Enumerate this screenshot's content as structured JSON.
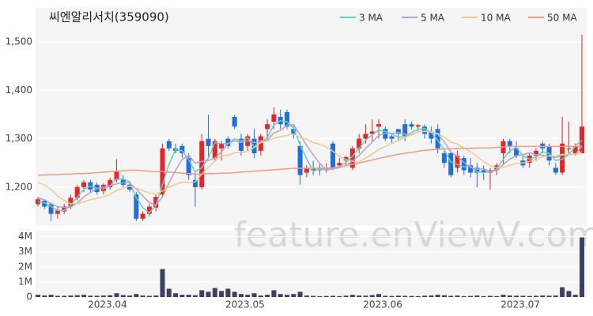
{
  "chart_data": [
    {
      "type": "candlestick",
      "title": "씨엔알리서치(359090)",
      "watermark": "feature.enViewV.com",
      "up_color": "#e4262b",
      "down_color": "#1f6fd6",
      "ylim": [
        1120,
        1570
      ],
      "yticks": [
        {
          "value": 1200,
          "label": "1,200"
        },
        {
          "value": 1300,
          "label": "1,300"
        },
        {
          "value": 1400,
          "label": "1,400"
        },
        {
          "value": 1500,
          "label": "1,500"
        }
      ],
      "grid": true,
      "legend": "top-right",
      "open": [
        1165,
        1172,
        1165,
        1145,
        1150,
        1160,
        1178,
        1200,
        1210,
        1205,
        1192,
        1200,
        1215,
        1215,
        1205,
        1185,
        1135,
        1145,
        1158,
        1185,
        1295,
        1280,
        1285,
        1260,
        1215,
        1200,
        1300,
        1260,
        1280,
        1300,
        1345,
        1300,
        1285,
        1300,
        1275,
        1320,
        1335,
        1345,
        1355,
        1320,
        1285,
        1230,
        1240,
        1240,
        1235,
        1290,
        1245,
        1255,
        1240,
        1280,
        1300,
        1310,
        1325,
        1320,
        1305,
        1320,
        1330,
        1330,
        1325,
        1325,
        1315,
        1320,
        1270,
        1270,
        1240,
        1260,
        1245,
        1240,
        1235,
        1230,
        1235,
        1270,
        1295,
        1280,
        1255,
        1250,
        1265,
        1290,
        1285,
        1240,
        1230,
        1280,
        1270,
        1270
      ],
      "high": [
        1180,
        1175,
        1168,
        1160,
        1165,
        1185,
        1205,
        1215,
        1215,
        1210,
        1208,
        1220,
        1258,
        1225,
        1210,
        1190,
        1150,
        1165,
        1185,
        1290,
        1300,
        1290,
        1290,
        1270,
        1230,
        1310,
        1350,
        1300,
        1295,
        1305,
        1350,
        1310,
        1310,
        1320,
        1310,
        1340,
        1365,
        1360,
        1360,
        1330,
        1295,
        1245,
        1255,
        1250,
        1250,
        1295,
        1260,
        1265,
        1285,
        1310,
        1330,
        1340,
        1340,
        1325,
        1310,
        1320,
        1340,
        1335,
        1330,
        1330,
        1325,
        1330,
        1280,
        1275,
        1275,
        1265,
        1260,
        1250,
        1245,
        1240,
        1250,
        1300,
        1300,
        1295,
        1265,
        1270,
        1280,
        1295,
        1290,
        1250,
        1345,
        1335,
        1290,
        1515
      ],
      "low": [
        1160,
        1155,
        1130,
        1135,
        1145,
        1155,
        1172,
        1190,
        1190,
        1185,
        1185,
        1195,
        1210,
        1200,
        1190,
        1130,
        1130,
        1140,
        1150,
        1180,
        1275,
        1270,
        1260,
        1215,
        1160,
        1195,
        1260,
        1255,
        1255,
        1280,
        1320,
        1265,
        1275,
        1260,
        1265,
        1300,
        1320,
        1320,
        1320,
        1300,
        1205,
        1220,
        1225,
        1225,
        1230,
        1235,
        1240,
        1245,
        1235,
        1270,
        1290,
        1295,
        1300,
        1295,
        1290,
        1295,
        1295,
        1320,
        1315,
        1300,
        1290,
        1270,
        1240,
        1220,
        1230,
        1225,
        1220,
        1200,
        1215,
        1195,
        1225,
        1245,
        1270,
        1260,
        1240,
        1240,
        1255,
        1270,
        1245,
        1225,
        1225,
        1270,
        1265,
        1270
      ],
      "close": [
        1175,
        1160,
        1145,
        1152,
        1160,
        1178,
        1200,
        1210,
        1195,
        1190,
        1205,
        1215,
        1232,
        1205,
        1195,
        1135,
        1145,
        1160,
        1180,
        1280,
        1280,
        1275,
        1270,
        1225,
        1200,
        1295,
        1285,
        1295,
        1290,
        1285,
        1325,
        1275,
        1305,
        1270,
        1305,
        1330,
        1350,
        1330,
        1325,
        1310,
        1225,
        1240,
        1235,
        1235,
        1240,
        1240,
        1250,
        1262,
        1280,
        1300,
        1310,
        1315,
        1330,
        1300,
        1300,
        1310,
        1305,
        1325,
        1328,
        1310,
        1300,
        1280,
        1250,
        1225,
        1265,
        1235,
        1230,
        1230,
        1230,
        1235,
        1245,
        1295,
        1285,
        1265,
        1245,
        1265,
        1275,
        1280,
        1255,
        1230,
        1290,
        1280,
        1285,
        1325
      ],
      "series": [
        {
          "name": "3 MA",
          "color": "#62cfc7",
          "values": [
            1170,
            1168,
            1160,
            1152,
            1152,
            1163,
            1179,
            1196,
            1202,
            1198,
            1197,
            1203,
            1217,
            1217,
            1211,
            1178,
            1158,
            1147,
            1162,
            1205,
            1247,
            1278,
            1275,
            1257,
            1232,
            1240,
            1260,
            1292,
            1290,
            1290,
            1300,
            1295,
            1302,
            1283,
            1293,
            1302,
            1328,
            1337,
            1335,
            1322,
            1287,
            1258,
            1233,
            1237,
            1237,
            1238,
            1243,
            1251,
            1264,
            1281,
            1297,
            1308,
            1318,
            1315,
            1310,
            1303,
            1305,
            1313,
            1319,
            1321,
            1313,
            1297,
            1277,
            1252,
            1247,
            1242,
            1243,
            1232,
            1230,
            1232,
            1237,
            1258,
            1275,
            1282,
            1265,
            1258,
            1262,
            1273,
            1270,
            1255,
            1258,
            1267,
            1285,
            1297
          ]
        },
        {
          "name": "5 MA",
          "color": "#b7a0cc",
          "values": [
            1178,
            1174,
            1166,
            1160,
            1158,
            1159,
            1167,
            1180,
            1189,
            1197,
            1200,
            1203,
            1207,
            1209,
            1209,
            1196,
            1182,
            1168,
            1163,
            1180,
            1209,
            1235,
            1257,
            1266,
            1250,
            1253,
            1255,
            1260,
            1273,
            1290,
            1296,
            1292,
            1296,
            1292,
            1296,
            1297,
            1312,
            1317,
            1328,
            1329,
            1308,
            1286,
            1267,
            1249,
            1235,
            1238,
            1240,
            1245,
            1254,
            1266,
            1280,
            1293,
            1307,
            1311,
            1311,
            1313,
            1309,
            1308,
            1314,
            1316,
            1314,
            1309,
            1294,
            1273,
            1264,
            1251,
            1241,
            1237,
            1238,
            1232,
            1234,
            1247,
            1258,
            1265,
            1267,
            1271,
            1267,
            1266,
            1264,
            1261,
            1266,
            1267,
            1268,
            1284
          ]
        },
        {
          "name": "10 MA",
          "color": "#f1c98a",
          "values": [
            1210,
            1205,
            1195,
            1182,
            1172,
            1166,
            1166,
            1170,
            1174,
            1177,
            1180,
            1185,
            1193,
            1198,
            1202,
            1198,
            1193,
            1188,
            1185,
            1192,
            1200,
            1206,
            1210,
            1210,
            1211,
            1227,
            1241,
            1254,
            1265,
            1266,
            1271,
            1271,
            1274,
            1282,
            1292,
            1295,
            1301,
            1304,
            1307,
            1310,
            1302,
            1299,
            1292,
            1289,
            1283,
            1274,
            1264,
            1257,
            1253,
            1252,
            1260,
            1268,
            1278,
            1284,
            1290,
            1297,
            1302,
            1309,
            1314,
            1315,
            1314,
            1311,
            1303,
            1293,
            1289,
            1281,
            1273,
            1263,
            1253,
            1245,
            1240,
            1241,
            1245,
            1249,
            1250,
            1253,
            1258,
            1263,
            1265,
            1264,
            1268,
            1267,
            1267,
            1273
          ]
        },
        {
          "name": "50 MA",
          "color": "#f59a86",
          "values": [
            1225,
            1225,
            1226,
            1226,
            1227,
            1227,
            1228,
            1228,
            1229,
            1230,
            1231,
            1232,
            1233,
            1234,
            1235,
            1235,
            1234,
            1233,
            1232,
            1232,
            1231,
            1230,
            1229,
            1228,
            1227,
            1227,
            1228,
            1228,
            1229,
            1229,
            1230,
            1231,
            1232,
            1233,
            1234,
            1235,
            1236,
            1237,
            1238,
            1239,
            1239,
            1239,
            1239,
            1239,
            1239,
            1240,
            1242,
            1244,
            1247,
            1250,
            1253,
            1256,
            1259,
            1262,
            1265,
            1268,
            1270,
            1272,
            1274,
            1276,
            1277,
            1278,
            1279,
            1279,
            1280,
            1280,
            1280,
            1281,
            1281,
            1281,
            1282,
            1283,
            1284,
            1284,
            1284,
            1284,
            1284,
            1284,
            1284,
            1284,
            1284,
            1284,
            1284,
            1285
          ]
        }
      ]
    },
    {
      "type": "bar",
      "color": "#3d3f63",
      "categories": [
        null,
        null,
        null,
        null,
        null,
        null,
        null,
        null,
        null,
        null,
        "2023.04",
        null,
        null,
        null,
        null,
        null,
        null,
        null,
        null,
        null,
        null,
        null,
        null,
        null,
        null,
        null,
        null,
        null,
        null,
        null,
        null,
        "2023.05",
        null,
        null,
        null,
        null,
        null,
        null,
        null,
        null,
        null,
        null,
        null,
        null,
        null,
        null,
        null,
        null,
        null,
        null,
        null,
        null,
        "2023.06",
        null,
        null,
        null,
        null,
        null,
        null,
        null,
        null,
        null,
        null,
        null,
        null,
        null,
        null,
        null,
        null,
        null,
        null,
        null,
        null,
        "2023.07",
        null,
        null,
        null,
        null,
        null,
        null,
        null,
        null,
        null,
        null
      ],
      "values": [
        150000,
        100000,
        150000,
        80000,
        80000,
        100000,
        120000,
        150000,
        90000,
        80000,
        100000,
        120000,
        250000,
        130000,
        100000,
        200000,
        100000,
        80000,
        100000,
        1850000,
        550000,
        250000,
        150000,
        150000,
        120000,
        450000,
        350000,
        600000,
        400000,
        550000,
        350000,
        200000,
        150000,
        250000,
        100000,
        150000,
        450000,
        200000,
        150000,
        200000,
        350000,
        100000,
        80000,
        60000,
        70000,
        80000,
        60000,
        90000,
        150000,
        100000,
        90000,
        130000,
        200000,
        80000,
        70000,
        90000,
        80000,
        70000,
        60000,
        90000,
        100000,
        150000,
        120000,
        80000,
        100000,
        60000,
        70000,
        100000,
        60000,
        80000,
        60000,
        150000,
        100000,
        90000,
        80000,
        70000,
        80000,
        100000,
        90000,
        100000,
        650000,
        400000,
        150000,
        3950000
      ],
      "ylim": [
        0,
        4400000
      ],
      "yticks": [
        0,
        {
          "value": 1000000,
          "label": "1M"
        },
        {
          "value": 2000000,
          "label": "2M"
        },
        {
          "value": 3000000,
          "label": "3M"
        },
        {
          "value": 4000000,
          "label": "4M"
        }
      ]
    }
  ]
}
